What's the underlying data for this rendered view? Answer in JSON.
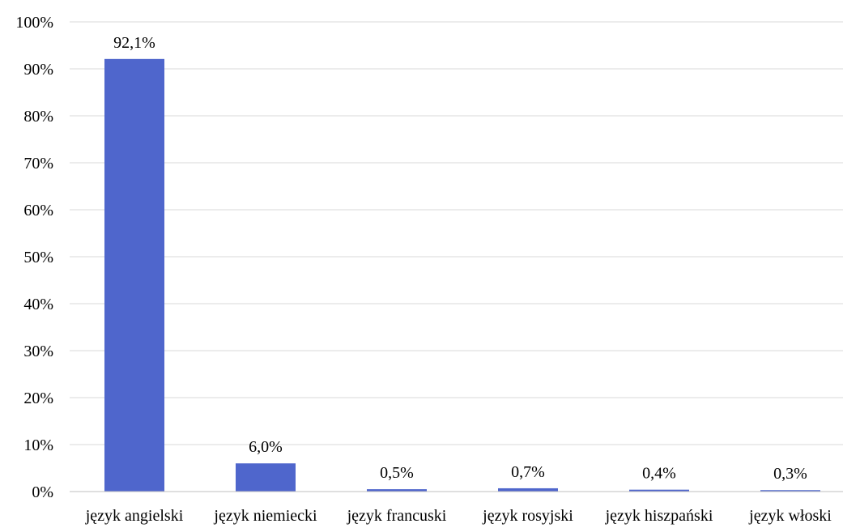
{
  "chart_data": {
    "type": "bar",
    "title": "",
    "xlabel": "",
    "ylabel": "",
    "categories": [
      "język angielski",
      "język niemiecki",
      "język francuski",
      "język rosyjski",
      "język hiszpański",
      "język włoski"
    ],
    "values": [
      92.1,
      6.0,
      0.5,
      0.7,
      0.4,
      0.3
    ],
    "data_labels": [
      "92,1%",
      "6,0%",
      "0,5%",
      "0,7%",
      "0,4%",
      "0,3%"
    ],
    "ylim": [
      0,
      100
    ],
    "yticks": [
      0,
      10,
      20,
      30,
      40,
      50,
      60,
      70,
      80,
      90,
      100
    ],
    "ytick_labels": [
      "0%",
      "10%",
      "20%",
      "30%",
      "40%",
      "50%",
      "60%",
      "70%",
      "80%",
      "90%",
      "100%"
    ],
    "grid": true,
    "legend": "none",
    "bar_color": "#4f66cc"
  }
}
